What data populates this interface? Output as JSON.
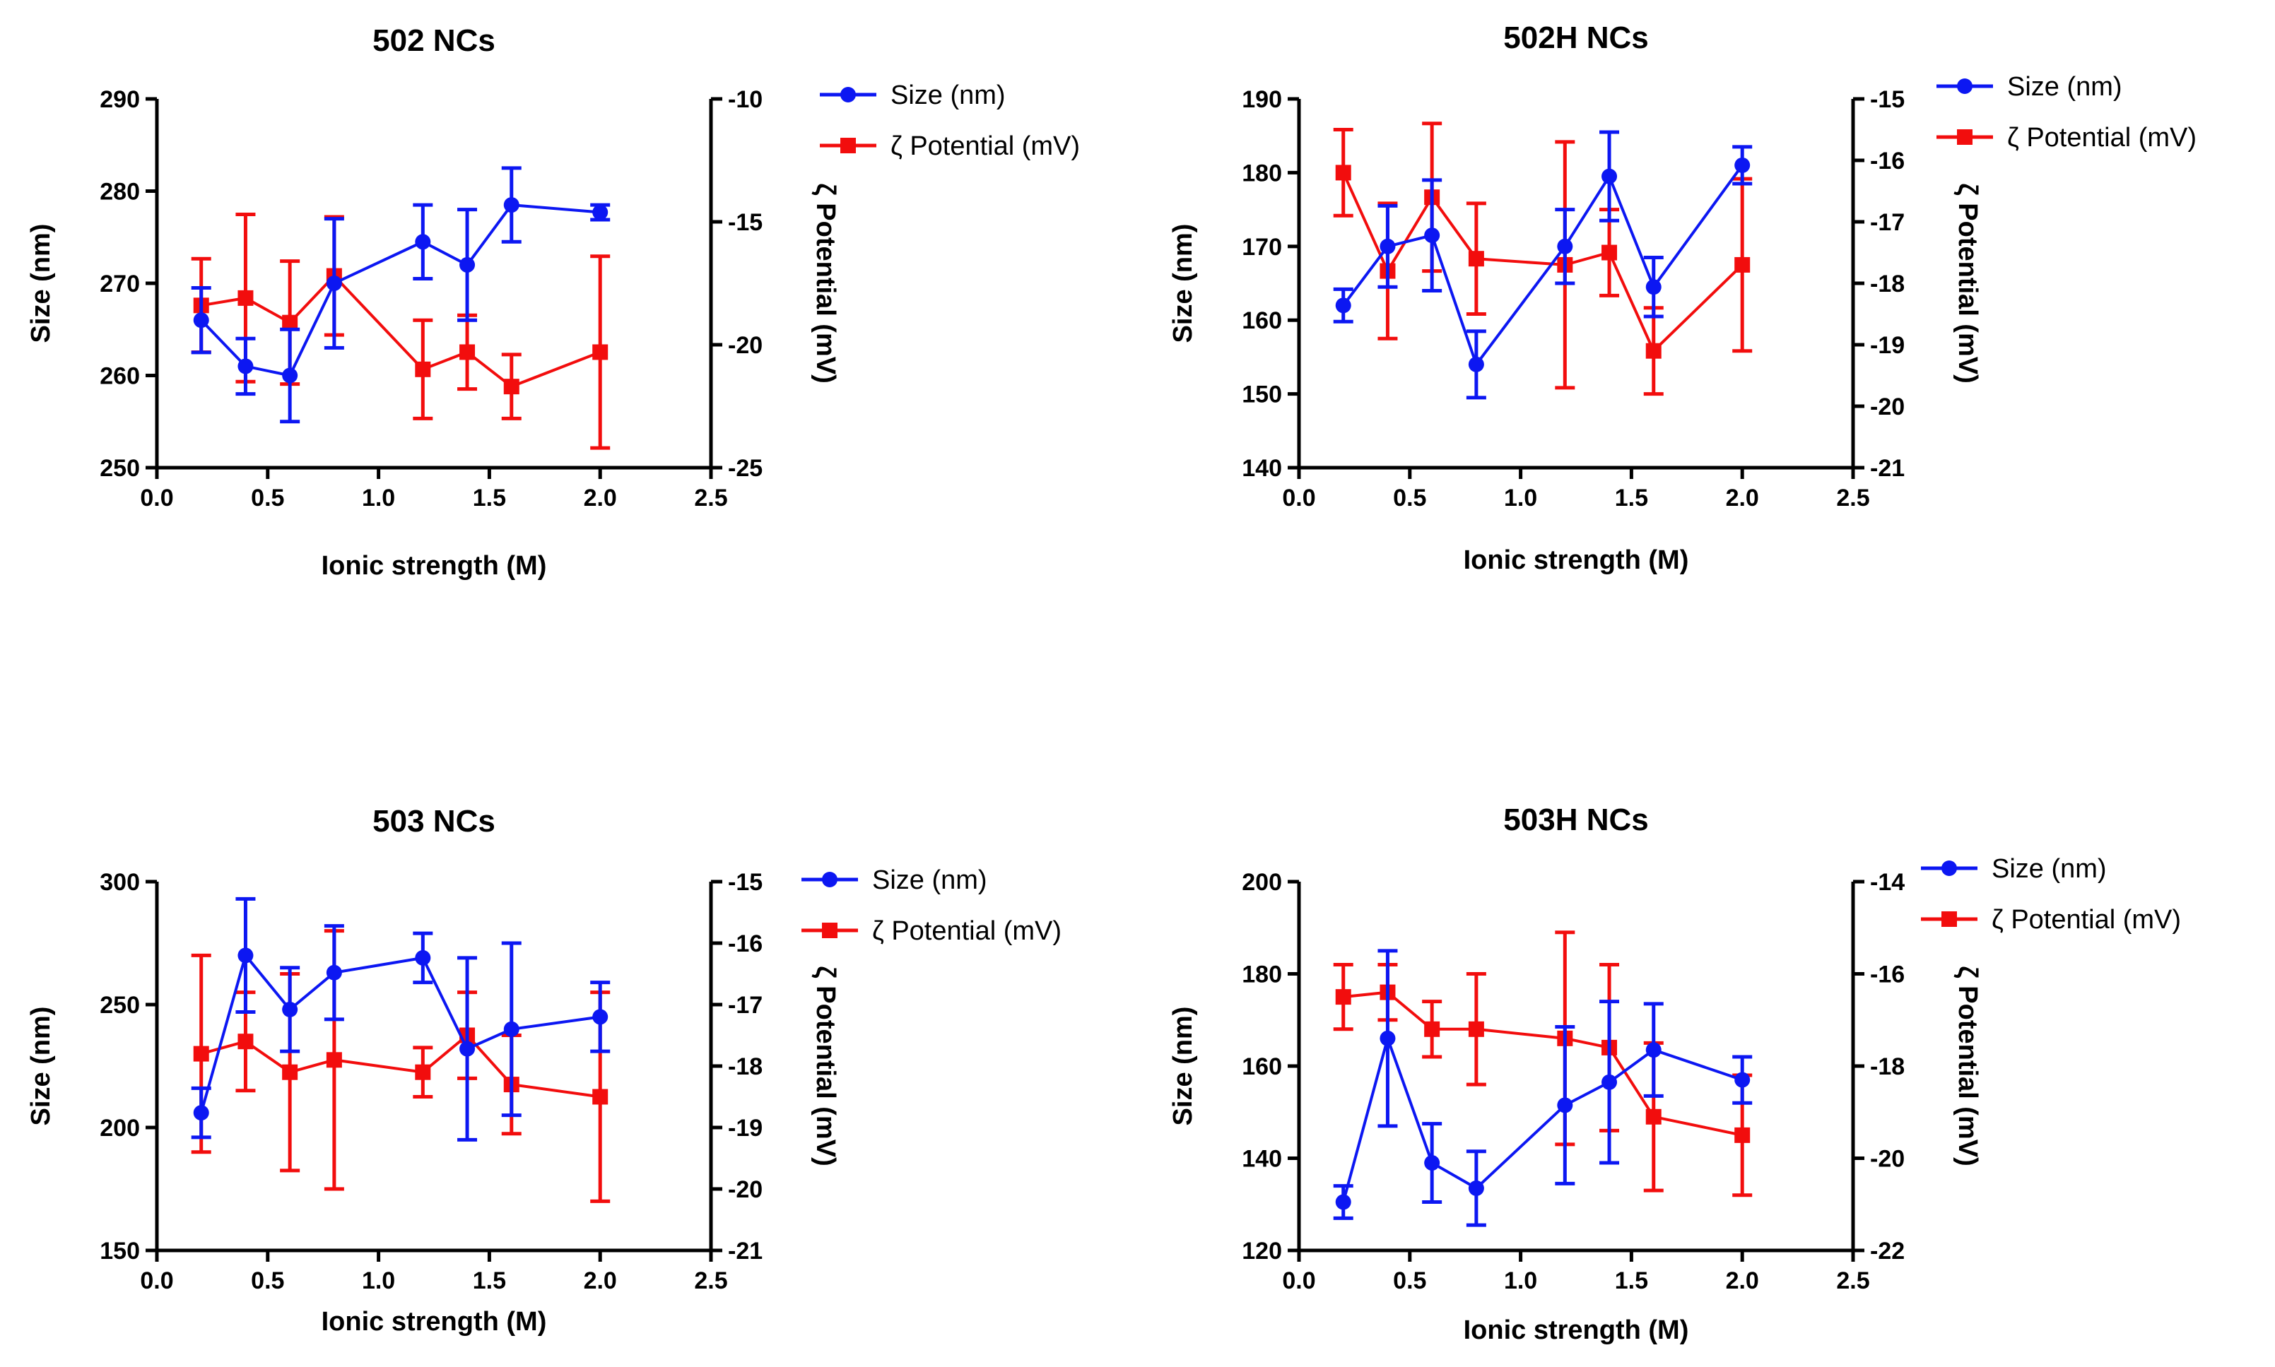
{
  "colors": {
    "size": "#0c17f2",
    "potential": "#f20d0d",
    "axis": "#000000"
  },
  "chart_data": [
    {
      "type": "line",
      "title": "502 NCs",
      "xlabel": "Ionic strength (M)",
      "ylabel": "Size (nm)",
      "y2label": "ζ Potential (mV)",
      "xlim": [
        0,
        2.5
      ],
      "xticks": [
        0,
        0.5,
        1,
        1.5,
        2,
        2.5
      ],
      "xticklabels": [
        "0.0",
        "0.5",
        "1.0",
        "1.5",
        "2.0",
        "2.5"
      ],
      "ylim": [
        250,
        290
      ],
      "yticks": [
        250,
        260,
        270,
        280,
        290
      ],
      "yticklabels": [
        "250",
        "260",
        "270",
        "280",
        "290"
      ],
      "y2lim": [
        -25,
        -10
      ],
      "y2ticks": [
        -25,
        -20,
        -15,
        -10
      ],
      "y2ticklabels": [
        "-25",
        "-20",
        "-15",
        "-10"
      ],
      "series": [
        {
          "name": "Size (nm)",
          "axis": "left",
          "marker": "circle",
          "x": [
            0.2,
            0.4,
            0.6,
            0.8,
            1.2,
            1.4,
            1.6,
            2.0
          ],
          "values": [
            266,
            261,
            260,
            270,
            274.5,
            272,
            278.5,
            277.7
          ],
          "err": [
            3.5,
            3,
            5,
            7,
            4,
            6,
            4,
            0.8
          ]
        },
        {
          "name": "ζ Potential (mV)",
          "axis": "right",
          "marker": "square",
          "x": [
            0.2,
            0.4,
            0.6,
            0.8,
            1.2,
            1.4,
            1.6,
            2.0
          ],
          "values": [
            -18.4,
            -18.1,
            -19.1,
            -17.2,
            -21.0,
            -20.3,
            -21.7,
            -20.3
          ],
          "err": [
            1.9,
            3.4,
            2.5,
            2.4,
            2.0,
            1.5,
            1.3,
            3.9
          ]
        }
      ],
      "legend": "right"
    },
    {
      "type": "line",
      "title": "502H NCs",
      "xlabel": "Ionic strength (M)",
      "ylabel": "Size (nm)",
      "y2label": "ζ Potential (mV)",
      "xlim": [
        0,
        2.5
      ],
      "xticks": [
        0,
        0.5,
        1,
        1.5,
        2,
        2.5
      ],
      "xticklabels": [
        "0.0",
        "0.5",
        "1.0",
        "1.5",
        "2.0",
        "2.5"
      ],
      "ylim": [
        140,
        190
      ],
      "yticks": [
        140,
        150,
        160,
        170,
        180,
        190
      ],
      "yticklabels": [
        "140",
        "150",
        "160",
        "170",
        "180",
        "190"
      ],
      "y2lim": [
        -21,
        -15
      ],
      "y2ticks": [
        -21,
        -20,
        -19,
        -18,
        -17,
        -16,
        -15
      ],
      "y2ticklabels": [
        "-21",
        "-20",
        "-19",
        "-18",
        "-17",
        "-16",
        "-15"
      ],
      "series": [
        {
          "name": "Size (nm)",
          "axis": "left",
          "marker": "circle",
          "x": [
            0.2,
            0.4,
            0.6,
            0.8,
            1.2,
            1.4,
            1.6,
            2.0
          ],
          "values": [
            162,
            170,
            171.5,
            154,
            170,
            179.5,
            164.5,
            181
          ],
          "err": [
            2.2,
            5.5,
            7.5,
            4.5,
            5,
            6,
            4,
            2.5
          ]
        },
        {
          "name": "ζ Potential (mV)",
          "axis": "right",
          "marker": "square",
          "x": [
            0.2,
            0.4,
            0.6,
            0.8,
            1.2,
            1.4,
            1.6,
            2.0
          ],
          "values": [
            -16.2,
            -17.8,
            -16.6,
            -17.6,
            -17.7,
            -17.5,
            -19.1,
            -17.7
          ],
          "err": [
            0.7,
            1.1,
            1.2,
            0.9,
            2.0,
            0.7,
            0.7,
            1.4
          ]
        }
      ],
      "legend": "right"
    },
    {
      "type": "line",
      "title": "503 NCs",
      "xlabel": "Ionic strength (M)",
      "ylabel": "Size (nm)",
      "y2label": "ζ Potential (mV)",
      "xlim": [
        0,
        2.5
      ],
      "xticks": [
        0,
        0.5,
        1,
        1.5,
        2,
        2.5
      ],
      "xticklabels": [
        "0.0",
        "0.5",
        "1.0",
        "1.5",
        "2.0",
        "2.5"
      ],
      "ylim": [
        150,
        300
      ],
      "yticks": [
        150,
        200,
        250,
        300
      ],
      "yticklabels": [
        "150",
        "200",
        "250",
        "300"
      ],
      "y2lim": [
        -21,
        -15
      ],
      "y2ticks": [
        -21,
        -20,
        -19,
        -18,
        -17,
        -16,
        -15
      ],
      "y2ticklabels": [
        "-21",
        "-20",
        "-19",
        "-18",
        "-17",
        "-16",
        "-15"
      ],
      "series": [
        {
          "name": "Size (nm)",
          "axis": "left",
          "marker": "circle",
          "x": [
            0.2,
            0.4,
            0.6,
            0.8,
            1.2,
            1.4,
            1.6,
            2.0
          ],
          "values": [
            206,
            270,
            248,
            263,
            269,
            232,
            240,
            245
          ],
          "err": [
            10,
            23,
            17,
            19,
            10,
            37,
            35,
            14
          ]
        },
        {
          "name": "ζ Potential (mV)",
          "axis": "right",
          "marker": "square",
          "x": [
            0.2,
            0.4,
            0.6,
            0.8,
            1.2,
            1.4,
            1.6,
            2.0
          ],
          "values": [
            -17.8,
            -17.6,
            -18.1,
            -17.9,
            -18.1,
            -17.5,
            -18.3,
            -18.5
          ],
          "err": [
            1.6,
            0.8,
            1.6,
            2.1,
            0.4,
            0.7,
            0.8,
            1.7
          ]
        }
      ],
      "legend": "right"
    },
    {
      "type": "line",
      "title": "503H NCs",
      "xlabel": "Ionic strength (M)",
      "ylabel": "Size (nm)",
      "y2label": "ζ Potential (mV)",
      "xlim": [
        0,
        2.5
      ],
      "xticks": [
        0,
        0.5,
        1,
        1.5,
        2,
        2.5
      ],
      "xticklabels": [
        "0.0",
        "0.5",
        "1.0",
        "1.5",
        "2.0",
        "2.5"
      ],
      "ylim": [
        120,
        200
      ],
      "yticks": [
        120,
        140,
        160,
        180,
        200
      ],
      "yticklabels": [
        "120",
        "140",
        "160",
        "180",
        "200"
      ],
      "y2lim": [
        -22,
        -14
      ],
      "y2ticks": [
        -22,
        -20,
        -18,
        -16,
        -14
      ],
      "y2ticklabels": [
        "-22",
        "-20",
        "-18",
        "-16",
        "-14"
      ],
      "series": [
        {
          "name": "Size (nm)",
          "axis": "left",
          "marker": "circle",
          "x": [
            0.2,
            0.4,
            0.6,
            0.8,
            1.2,
            1.4,
            1.6,
            2.0
          ],
          "values": [
            130.5,
            166,
            139,
            133.5,
            151.5,
            156.5,
            163.5,
            157
          ],
          "err": [
            3.5,
            19,
            8.5,
            8,
            17,
            17.5,
            10,
            5
          ]
        },
        {
          "name": "ζ Potential (mV)",
          "axis": "right",
          "marker": "square",
          "x": [
            0.2,
            0.4,
            0.6,
            0.8,
            1.2,
            1.4,
            1.6,
            2.0
          ],
          "values": [
            -16.5,
            -16.4,
            -17.2,
            -17.2,
            -17.4,
            -17.6,
            -19.1,
            -19.5
          ],
          "err": [
            0.7,
            0.6,
            0.6,
            1.2,
            2.3,
            1.8,
            1.6,
            1.3
          ]
        }
      ],
      "legend": "right"
    }
  ]
}
